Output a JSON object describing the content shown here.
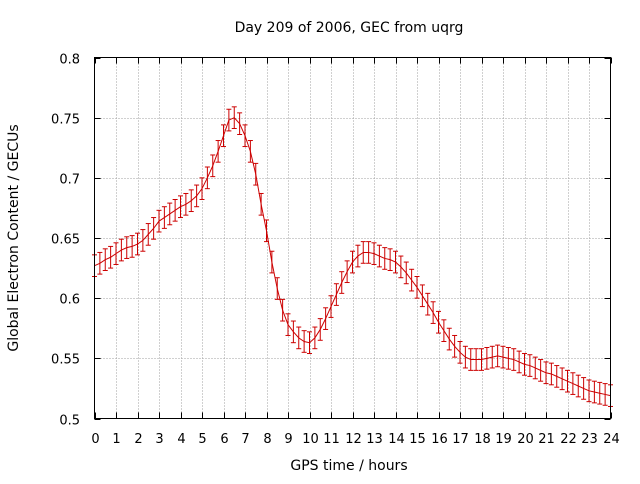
{
  "chart_data": {
    "type": "line",
    "title": "Day 209 of 2006, GEC from uqrg",
    "xlabel": "GPS time / hours",
    "ylabel": "Global Electron Content / GECUs",
    "xlim": [
      0,
      24
    ],
    "ylim": [
      0.5,
      0.8
    ],
    "xticks": [
      0,
      1,
      2,
      3,
      4,
      5,
      6,
      7,
      8,
      9,
      10,
      11,
      12,
      13,
      14,
      15,
      16,
      17,
      18,
      19,
      20,
      21,
      22,
      23,
      24
    ],
    "yticks": [
      0.5,
      0.55,
      0.6,
      0.65,
      0.7,
      0.75,
      0.8
    ],
    "ytick_labels": [
      "0.5",
      "0.55",
      "0.6",
      "0.65",
      "0.7",
      "0.75",
      "0.8"
    ],
    "grid": true,
    "marker": "error bars",
    "series_color": "#cc0000",
    "series": [
      {
        "x": [
          0,
          0.25,
          0.5,
          0.75,
          1,
          1.25,
          1.5,
          1.75,
          2,
          2.25,
          2.5,
          2.75,
          3,
          3.25,
          3.5,
          3.75,
          4,
          4.25,
          4.5,
          4.75,
          5,
          5.25,
          5.5,
          5.75,
          6,
          6.25,
          6.5,
          6.75,
          7,
          7.25,
          7.5,
          7.75,
          8,
          8.25,
          8.5,
          8.75,
          9,
          9.25,
          9.5,
          9.75,
          10,
          10.25,
          10.5,
          10.75,
          11,
          11.25,
          11.5,
          11.75,
          12,
          12.25,
          12.5,
          12.75,
          13,
          13.25,
          13.5,
          13.75,
          14,
          14.25,
          14.5,
          14.75,
          15,
          15.25,
          15.5,
          15.75,
          16,
          16.25,
          16.5,
          16.75,
          17,
          17.25,
          17.5,
          17.75,
          18,
          18.25,
          18.5,
          18.75,
          19,
          19.25,
          19.5,
          19.75,
          20,
          20.25,
          20.5,
          20.75,
          21,
          21.25,
          21.5,
          21.75,
          22,
          22.25,
          22.5,
          22.75,
          23,
          23.25,
          23.5,
          23.75,
          24
        ],
        "values": [
          0.627,
          0.629,
          0.632,
          0.634,
          0.637,
          0.64,
          0.642,
          0.643,
          0.645,
          0.648,
          0.653,
          0.658,
          0.664,
          0.667,
          0.67,
          0.673,
          0.676,
          0.678,
          0.681,
          0.685,
          0.691,
          0.7,
          0.71,
          0.722,
          0.735,
          0.748,
          0.75,
          0.745,
          0.735,
          0.722,
          0.703,
          0.678,
          0.656,
          0.63,
          0.608,
          0.59,
          0.578,
          0.572,
          0.567,
          0.564,
          0.563,
          0.567,
          0.574,
          0.583,
          0.593,
          0.603,
          0.613,
          0.622,
          0.63,
          0.635,
          0.638,
          0.638,
          0.637,
          0.635,
          0.633,
          0.632,
          0.63,
          0.626,
          0.621,
          0.615,
          0.609,
          0.602,
          0.595,
          0.588,
          0.58,
          0.573,
          0.566,
          0.56,
          0.555,
          0.551,
          0.549,
          0.549,
          0.549,
          0.55,
          0.551,
          0.552,
          0.551,
          0.55,
          0.549,
          0.547,
          0.545,
          0.544,
          0.542,
          0.54,
          0.538,
          0.537,
          0.535,
          0.533,
          0.531,
          0.529,
          0.527,
          0.525,
          0.523,
          0.522,
          0.521,
          0.52,
          0.519
        ],
        "error": 0.009
      }
    ]
  }
}
